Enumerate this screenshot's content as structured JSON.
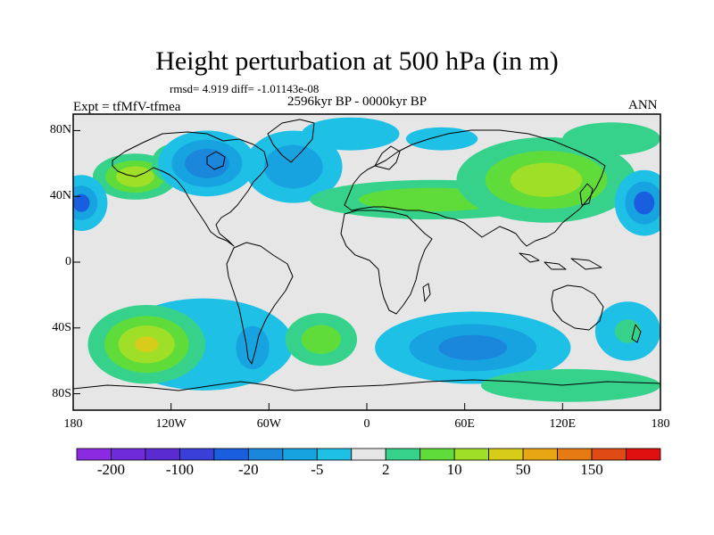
{
  "title": "Height perturbation at 500 hPa (in m)",
  "stats_line": "rmsd= 4.919 diff= -1.01143e-08",
  "experiment": "Expt = tfMfV-tfmea",
  "period": "2596kyr BP - 0000kyr BP",
  "season": "ANN",
  "map": {
    "type": "filled-contour",
    "projection": "cylindrical-equidistant",
    "lon_range": [
      -180,
      180
    ],
    "lat_range": [
      -90,
      90
    ],
    "background_color": "#e6e6e6",
    "coastline_color": "#000000",
    "y_ticks": [
      {
        "label": "80N",
        "lat": 80
      },
      {
        "label": "40N",
        "lat": 40
      },
      {
        "label": "0",
        "lat": 0
      },
      {
        "label": "40S",
        "lat": -40
      },
      {
        "label": "80S",
        "lat": -80
      }
    ],
    "x_ticks": [
      {
        "label": "180",
        "lon": -180
      },
      {
        "label": "120W",
        "lon": -120
      },
      {
        "label": "60W",
        "lon": -60
      },
      {
        "label": "0",
        "lon": 0
      },
      {
        "label": "60E",
        "lon": 60
      },
      {
        "label": "120E",
        "lon": 120
      },
      {
        "label": "180",
        "lon": 180
      }
    ],
    "regions": [
      {
        "name": "north-pacific-high",
        "lon": -142,
        "lat": 52,
        "rx": 26,
        "ry": 14,
        "levels": [
          [
            "#36d28c",
            1
          ],
          [
            "#5fdc3a",
            0.7
          ],
          [
            "#9fdf28",
            0.45
          ]
        ]
      },
      {
        "name": "north-pacific-high-east",
        "lon": -118,
        "lat": 60,
        "rx": 14,
        "ry": 12,
        "levels": [
          [
            "#36d28c",
            1
          ]
        ]
      },
      {
        "name": "north-america-low",
        "lon": -98,
        "lat": 60,
        "rx": 30,
        "ry": 20,
        "levels": [
          [
            "#1ec0e6",
            1
          ],
          [
            "#17a3e0",
            0.72
          ],
          [
            "#1a86dc",
            0.45
          ]
        ]
      },
      {
        "name": "eurasia-arctic-low",
        "lon": -10,
        "lat": 78,
        "rx": 30,
        "ry": 10,
        "levels": [
          [
            "#1ec0e6",
            1
          ]
        ]
      },
      {
        "name": "east-siberia-low",
        "lon": 46,
        "lat": 75,
        "rx": 22,
        "ry": 7,
        "levels": [
          [
            "#1ec0e6",
            1
          ]
        ]
      },
      {
        "name": "north-atlantic-low",
        "lon": -45,
        "lat": 58,
        "rx": 30,
        "ry": 22,
        "levels": [
          [
            "#1ec0e6",
            1
          ],
          [
            "#17a3e0",
            0.6
          ]
        ]
      },
      {
        "name": "eurasia-ridge",
        "lon": 40,
        "lat": 38,
        "rx": 75,
        "ry": 12,
        "levels": [
          [
            "#36d28c",
            1
          ],
          [
            "#5fdc3a",
            0.6
          ]
        ]
      },
      {
        "name": "east-asia-high",
        "lon": 110,
        "lat": 50,
        "rx": 55,
        "ry": 26,
        "levels": [
          [
            "#36d28c",
            1
          ],
          [
            "#5fdc3a",
            0.68
          ],
          [
            "#9fdf28",
            0.4
          ]
        ]
      },
      {
        "name": "arctic-high-east",
        "lon": 150,
        "lat": 75,
        "rx": 30,
        "ry": 10,
        "levels": [
          [
            "#36d28c",
            1
          ]
        ]
      },
      {
        "name": "dateline-low-east",
        "lon": 170,
        "lat": 36,
        "rx": 18,
        "ry": 20,
        "levels": [
          [
            "#1ec0e6",
            1
          ],
          [
            "#17a3e0",
            0.65
          ],
          [
            "#1a5ee0",
            0.35
          ]
        ]
      },
      {
        "name": "dateline-low-west",
        "lon": -175,
        "lat": 36,
        "rx": 16,
        "ry": 17,
        "levels": [
          [
            "#1ec0e6",
            1
          ],
          [
            "#17a3e0",
            0.62
          ],
          [
            "#1a5ee0",
            0.32
          ]
        ]
      },
      {
        "name": "south-pacific-low-arc",
        "lon": -100,
        "lat": -50,
        "rx": 55,
        "ry": 28,
        "levels": [
          [
            "#1ec0e6",
            1
          ]
        ]
      },
      {
        "name": "south-pacific-high",
        "lon": -135,
        "lat": -50,
        "rx": 36,
        "ry": 24,
        "levels": [
          [
            "#36d28c",
            1
          ],
          [
            "#5fdc3a",
            0.72
          ],
          [
            "#9fdf28",
            0.48
          ],
          [
            "#d7cc1a",
            0.2
          ]
        ]
      },
      {
        "name": "south-america-low",
        "lon": -70,
        "lat": -52,
        "rx": 17,
        "ry": 22,
        "levels": [
          [
            "#1ec0e6",
            1
          ],
          [
            "#17a3e0",
            0.6
          ]
        ]
      },
      {
        "name": "south-atlantic-high",
        "lon": -28,
        "lat": -47,
        "rx": 22,
        "ry": 16,
        "levels": [
          [
            "#36d28c",
            1
          ],
          [
            "#5fdc3a",
            0.55
          ]
        ]
      },
      {
        "name": "indian-ocean-low",
        "lon": 65,
        "lat": -52,
        "rx": 60,
        "ry": 22,
        "levels": [
          [
            "#1ec0e6",
            1
          ],
          [
            "#17a3e0",
            0.65
          ],
          [
            "#1a86dc",
            0.35
          ]
        ]
      },
      {
        "name": "australia-high",
        "lon": 125,
        "lat": -75,
        "rx": 55,
        "ry": 10,
        "levels": [
          [
            "#36d28c",
            1
          ]
        ]
      },
      {
        "name": "southwest-pacific-low",
        "lon": 160,
        "lat": -42,
        "rx": 20,
        "ry": 18,
        "levels": [
          [
            "#1ec0e6",
            1
          ],
          [
            "#36d28c",
            0.4
          ]
        ]
      }
    ]
  },
  "colorbar": {
    "colors": [
      "#8a2be2",
      "#6f2bd9",
      "#5a2bd0",
      "#3a3fd8",
      "#1a5ee0",
      "#1a86dc",
      "#17a3e0",
      "#1ec0e6",
      "#e6e6e6",
      "#36d28c",
      "#5fdc3a",
      "#9fdf28",
      "#d7cc1a",
      "#e8a514",
      "#e67b14",
      "#e04a14",
      "#e01010"
    ],
    "labels": [
      {
        "text": "-200",
        "boundary": 1
      },
      {
        "text": "-100",
        "boundary": 3
      },
      {
        "text": "-20",
        "boundary": 5
      },
      {
        "text": "-5",
        "boundary": 7
      },
      {
        "text": "2",
        "boundary": 9
      },
      {
        "text": "10",
        "boundary": 11
      },
      {
        "text": "50",
        "boundary": 13
      },
      {
        "text": "150",
        "boundary": 15
      }
    ]
  }
}
